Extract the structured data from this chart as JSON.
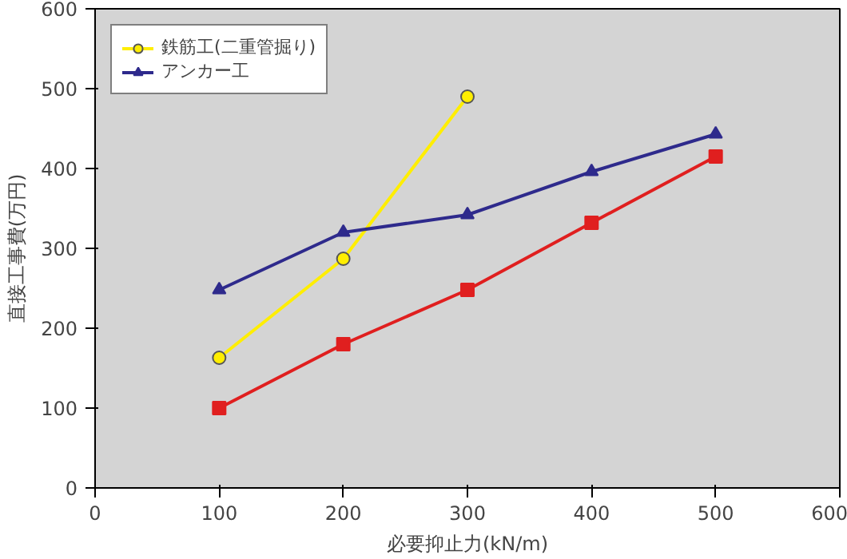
{
  "chart_data": {
    "type": "line",
    "xlabel": "必要抑止力(kN/m)",
    "ylabel": "直接工事費(万円)",
    "xlim": [
      0,
      600
    ],
    "xticks": [
      0,
      100,
      200,
      300,
      400,
      500,
      600
    ],
    "ylim": [
      0,
      600
    ],
    "yticks": [
      0,
      100,
      200,
      300,
      400,
      500,
      600
    ],
    "grid": false,
    "legend": "top left",
    "line_style": "solid",
    "series": [
      {
        "name": "鉄筋工(二重管掘り)",
        "color": "#ffee00",
        "marker": "circle",
        "x": [
          100,
          200,
          300
        ],
        "values": [
          163,
          287,
          490
        ]
      },
      {
        "name": "アンカー工",
        "color": "#2e2a8c",
        "marker": "triangle",
        "x": [
          100,
          200,
          300,
          400,
          500
        ],
        "values": [
          248,
          320,
          342,
          396,
          443
        ]
      },
      {
        "color": "#e01f1f",
        "marker": "square",
        "x": [
          100,
          200,
          300,
          400,
          500
        ],
        "values": [
          100,
          180,
          248,
          332,
          415
        ]
      }
    ]
  }
}
